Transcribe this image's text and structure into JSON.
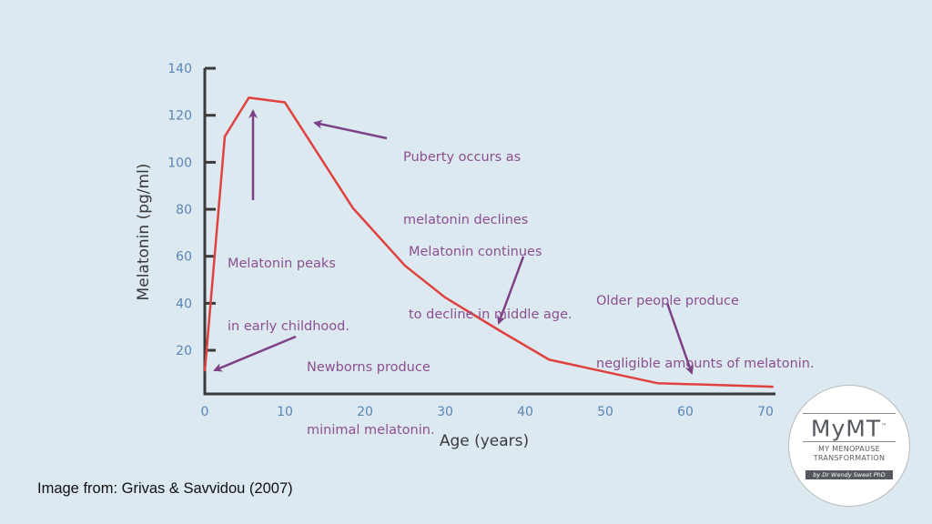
{
  "chart_data": {
    "type": "line",
    "title": "",
    "xlabel": "Age (years)",
    "ylabel": "Melatonin (pg/ml)",
    "xlim": [
      0,
      71
    ],
    "ylim": [
      0,
      140
    ],
    "xticks": [
      0,
      10,
      20,
      30,
      40,
      50,
      60,
      70
    ],
    "yticks": [
      20,
      40,
      60,
      80,
      100,
      120,
      140
    ],
    "grid": false,
    "series": [
      {
        "name": "Melatonin",
        "color": "#e0413e",
        "x": [
          0,
          2.5,
          5.5,
          10,
          18.5,
          25,
          30,
          37,
          43,
          56.5,
          71
        ],
        "y": [
          11,
          111,
          127.5,
          125.5,
          80.5,
          56,
          42.5,
          28,
          16,
          6,
          4.5
        ]
      }
    ],
    "annotations": [
      {
        "lines": [
          "Melatonin peaks",
          "in early childhood."
        ]
      },
      {
        "lines": [
          "Puberty occurs as",
          "melatonin declines"
        ]
      },
      {
        "lines": [
          "Newborns produce",
          "minimal melatonin."
        ]
      },
      {
        "lines": [
          "Melatonin continues",
          "to decline in middle age."
        ]
      },
      {
        "lines": [
          "Older people produce",
          "negligible amounts of melatonin."
        ]
      }
    ]
  },
  "caption": "Image from: Grivas & Savvidou (2007)",
  "logo": {
    "brand": "MyMT",
    "tm": "™",
    "line1": "MY MENOPAUSE",
    "line2": "TRANSFORMATION",
    "byline": "by Dr Wendy Sweet PhD"
  },
  "colors": {
    "axis": "#3a3a3a",
    "tick_label": "#5b85b5",
    "annotation": "#8b4f8f",
    "arrow": "#7d3f86"
  }
}
